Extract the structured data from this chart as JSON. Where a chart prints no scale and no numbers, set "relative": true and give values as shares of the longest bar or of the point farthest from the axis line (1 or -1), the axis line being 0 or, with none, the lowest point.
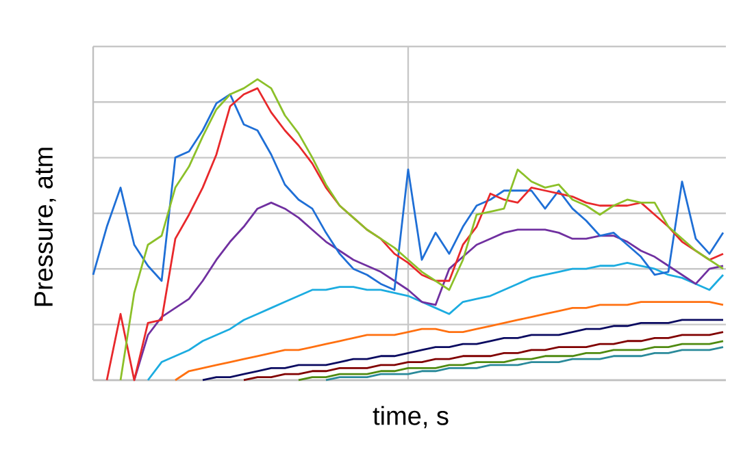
{
  "chart_data": {
    "type": "line",
    "xlabel": "time, s",
    "ylabel": "Pressure, atm",
    "relative": true,
    "grid": true,
    "marker": "none",
    "line_style": "solid",
    "categories": [
      null,
      null,
      null,
      null,
      null,
      null,
      null,
      null,
      null,
      null,
      null,
      null,
      null,
      null,
      null,
      null,
      null,
      null,
      null,
      null,
      null,
      null,
      null,
      null,
      null,
      null,
      null,
      null,
      null,
      null,
      null,
      null,
      null,
      null,
      null,
      null,
      null,
      null,
      null,
      null,
      null,
      null,
      null,
      null,
      null,
      null,
      null
    ],
    "series": [
      {
        "color": "#2a8a9a",
        "values": [
          null,
          null,
          null,
          null,
          null,
          null,
          null,
          null,
          null,
          null,
          null,
          null,
          null,
          null,
          null,
          null,
          null,
          0,
          0.01,
          0.01,
          0.01,
          0.02,
          0.02,
          0.02,
          0.03,
          0.03,
          0.04,
          0.04,
          0.04,
          0.05,
          0.05,
          0.05,
          0.06,
          0.06,
          0.06,
          0.07,
          0.07,
          0.07,
          0.08,
          0.08,
          0.08,
          0.09,
          0.09,
          0.1,
          0.1,
          0.1,
          0.11
        ]
      },
      {
        "color": "#4f8a10",
        "values": [
          null,
          null,
          null,
          null,
          null,
          null,
          null,
          null,
          null,
          null,
          null,
          null,
          null,
          null,
          null,
          0,
          0.01,
          0.01,
          0.02,
          0.02,
          0.02,
          0.03,
          0.03,
          0.04,
          0.04,
          0.04,
          0.05,
          0.05,
          0.06,
          0.06,
          0.06,
          0.07,
          0.07,
          0.08,
          0.08,
          0.08,
          0.09,
          0.09,
          0.1,
          0.1,
          0.1,
          0.11,
          0.11,
          0.12,
          0.12,
          0.12,
          0.13
        ]
      },
      {
        "color": "#800000",
        "values": [
          null,
          null,
          null,
          null,
          null,
          null,
          null,
          null,
          null,
          null,
          null,
          0,
          0.01,
          0.01,
          0.02,
          0.02,
          0.03,
          0.03,
          0.04,
          0.04,
          0.04,
          0.05,
          0.05,
          0.06,
          0.06,
          0.07,
          0.07,
          0.08,
          0.08,
          0.08,
          0.09,
          0.09,
          0.1,
          0.1,
          0.11,
          0.11,
          0.11,
          0.12,
          0.12,
          0.13,
          0.13,
          0.14,
          0.14,
          0.15,
          0.15,
          0.15,
          0.16
        ]
      },
      {
        "color": "#0a0a60",
        "values": [
          null,
          null,
          null,
          null,
          null,
          null,
          null,
          null,
          0,
          0.01,
          0.01,
          0.02,
          0.03,
          0.04,
          0.04,
          0.05,
          0.05,
          0.05,
          0.06,
          0.07,
          0.07,
          0.08,
          0.08,
          0.09,
          0.1,
          0.11,
          0.11,
          0.12,
          0.12,
          0.13,
          0.14,
          0.14,
          0.15,
          0.15,
          0.15,
          0.16,
          0.17,
          0.17,
          0.18,
          0.18,
          0.19,
          0.19,
          0.19,
          0.2,
          0.2,
          0.2,
          0.2
        ]
      },
      {
        "color": "#ff7010",
        "values": [
          null,
          null,
          null,
          null,
          null,
          null,
          0,
          0.03,
          0.04,
          0.05,
          0.06,
          0.07,
          0.08,
          0.09,
          0.1,
          0.1,
          0.11,
          0.12,
          0.13,
          0.14,
          0.15,
          0.15,
          0.15,
          0.16,
          0.17,
          0.17,
          0.16,
          0.16,
          0.17,
          0.18,
          0.19,
          0.2,
          0.21,
          0.22,
          0.23,
          0.24,
          0.24,
          0.25,
          0.25,
          0.25,
          0.26,
          0.26,
          0.26,
          0.26,
          0.26,
          0.26,
          0.25
        ]
      },
      {
        "color": "#1cace0",
        "values": [
          null,
          null,
          null,
          null,
          0,
          0.06,
          0.08,
          0.1,
          0.13,
          0.15,
          0.17,
          0.2,
          0.22,
          0.24,
          0.26,
          0.28,
          0.3,
          0.3,
          0.31,
          0.31,
          0.3,
          0.3,
          0.29,
          0.28,
          0.26,
          0.24,
          0.22,
          0.26,
          0.27,
          0.28,
          0.3,
          0.32,
          0.34,
          0.35,
          0.36,
          0.37,
          0.37,
          0.38,
          0.38,
          0.39,
          0.38,
          0.37,
          0.35,
          0.34,
          0.32,
          0.3,
          0.35
        ]
      },
      {
        "color": "#7030a0",
        "values": [
          null,
          null,
          null,
          0,
          0.15,
          0.21,
          0.24,
          0.27,
          0.33,
          0.4,
          0.46,
          0.51,
          0.57,
          0.59,
          0.57,
          0.54,
          0.5,
          0.46,
          0.43,
          0.4,
          0.38,
          0.36,
          0.33,
          0.3,
          0.26,
          0.25,
          0.37,
          0.41,
          0.45,
          0.47,
          0.49,
          0.5,
          0.5,
          0.5,
          0.49,
          0.47,
          0.47,
          0.48,
          0.48,
          0.46,
          0.43,
          0.41,
          0.38,
          0.35,
          0.32,
          0.37,
          0.38
        ]
      },
      {
        "color": "#1f6fd6",
        "values": [
          0.35,
          0.51,
          0.64,
          0.45,
          0.38,
          0.33,
          0.74,
          0.76,
          0.83,
          0.92,
          0.95,
          0.85,
          0.83,
          0.75,
          0.65,
          0.6,
          0.57,
          0.49,
          0.42,
          0.37,
          0.35,
          0.32,
          0.3,
          0.7,
          0.4,
          0.49,
          0.42,
          0.51,
          0.58,
          0.6,
          0.63,
          0.63,
          0.63,
          0.57,
          0.63,
          0.57,
          0.53,
          0.48,
          0.49,
          0.45,
          0.41,
          0.35,
          0.36,
          0.66,
          0.47,
          0.42,
          0.49
        ]
      },
      {
        "color": "#e8282b",
        "values": [
          null,
          0,
          0.22,
          0,
          0.19,
          0.2,
          0.47,
          0.55,
          0.64,
          0.75,
          0.91,
          0.95,
          0.97,
          0.89,
          0.83,
          0.78,
          0.72,
          0.64,
          0.58,
          0.54,
          0.5,
          0.47,
          0.42,
          0.39,
          0.35,
          0.33,
          0.33,
          0.45,
          0.51,
          0.62,
          0.6,
          0.59,
          0.64,
          0.63,
          0.62,
          0.61,
          0.59,
          0.58,
          0.58,
          0.58,
          0.59,
          0.55,
          0.51,
          0.46,
          0.43,
          0.4,
          0.42
        ]
      },
      {
        "color": "#8cc029",
        "values": [
          null,
          null,
          0,
          0.29,
          0.45,
          0.48,
          0.64,
          0.71,
          0.81,
          0.9,
          0.95,
          0.97,
          1,
          0.97,
          0.88,
          0.82,
          0.74,
          0.65,
          0.58,
          0.54,
          0.5,
          0.47,
          0.44,
          0.4,
          0.36,
          0.33,
          0.3,
          0.4,
          0.55,
          0.56,
          0.57,
          0.7,
          0.66,
          0.64,
          0.65,
          0.6,
          0.58,
          0.55,
          0.58,
          0.6,
          0.59,
          0.59,
          0.51,
          0.47,
          0.43,
          0.4,
          0.37
        ]
      }
    ]
  }
}
